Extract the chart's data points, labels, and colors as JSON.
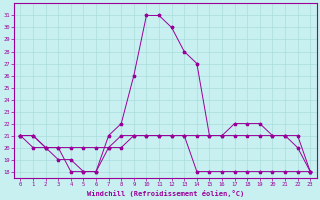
{
  "xlabel": "Windchill (Refroidissement éolien,°C)",
  "bg_color": "#c8f0f0",
  "grid_color": "#aadddd",
  "line_color": "#990099",
  "x_ticks": [
    0,
    1,
    2,
    3,
    4,
    5,
    6,
    7,
    8,
    9,
    10,
    11,
    12,
    13,
    14,
    15,
    16,
    17,
    18,
    19,
    20,
    21,
    22,
    23
  ],
  "y_ticks": [
    18,
    19,
    20,
    21,
    22,
    23,
    24,
    25,
    26,
    27,
    28,
    29,
    30,
    31
  ],
  "ylim": [
    17.5,
    32.0
  ],
  "xlim": [
    -0.5,
    23.5
  ],
  "line1_x": [
    0,
    1,
    2,
    3,
    4,
    5,
    6,
    7,
    8,
    9,
    10,
    11,
    12,
    13,
    14,
    15,
    16,
    17,
    18,
    19,
    20,
    21,
    22,
    23
  ],
  "line1_y": [
    21,
    21,
    20,
    20,
    18,
    18,
    18,
    21,
    22,
    26,
    31,
    31,
    30,
    28,
    27,
    21,
    21,
    21,
    21,
    21,
    21,
    21,
    20,
    18
  ],
  "line2_x": [
    0,
    1,
    2,
    3,
    4,
    5,
    6,
    7,
    8,
    9,
    10,
    11,
    12,
    13,
    14,
    15,
    16,
    17,
    18,
    19,
    20,
    21,
    22,
    23
  ],
  "line2_y": [
    21,
    20,
    20,
    20,
    20,
    20,
    20,
    20,
    20,
    21,
    21,
    21,
    21,
    21,
    21,
    21,
    21,
    22,
    22,
    22,
    21,
    21,
    21,
    18
  ],
  "line3_x": [
    0,
    1,
    2,
    3,
    4,
    5,
    6,
    7,
    8,
    9,
    10,
    11,
    12,
    13,
    14,
    15,
    16,
    17,
    18,
    19,
    20,
    21,
    22,
    23
  ],
  "line3_y": [
    21,
    21,
    20,
    19,
    19,
    18,
    18,
    20,
    21,
    21,
    21,
    21,
    21,
    21,
    18,
    18,
    18,
    18,
    18,
    18,
    18,
    18,
    18,
    18
  ]
}
